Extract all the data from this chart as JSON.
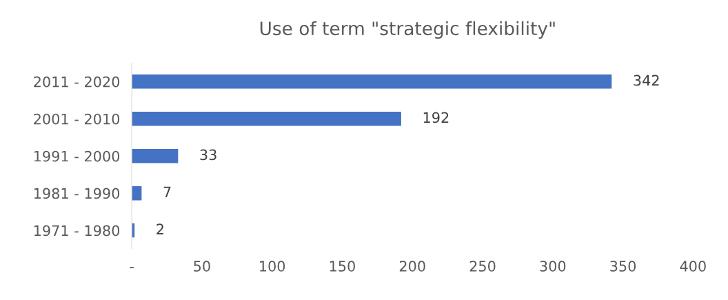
{
  "chart_data": {
    "type": "bar",
    "orientation": "horizontal",
    "title": "Use of term \"strategic flexibility\"",
    "categories": [
      "2011 - 2020",
      "2001 - 2010",
      "1991 - 2000",
      "1981 - 1990",
      "1971 - 1980"
    ],
    "values": [
      342,
      192,
      33,
      7,
      2
    ],
    "color": "#4472c4",
    "xlim": [
      0,
      400
    ],
    "xticks": [
      {
        "value": 0,
        "label": "-"
      },
      50,
      100,
      150,
      200,
      250,
      300,
      350,
      400
    ],
    "data_labels": true,
    "grid": false,
    "legend": false
  }
}
